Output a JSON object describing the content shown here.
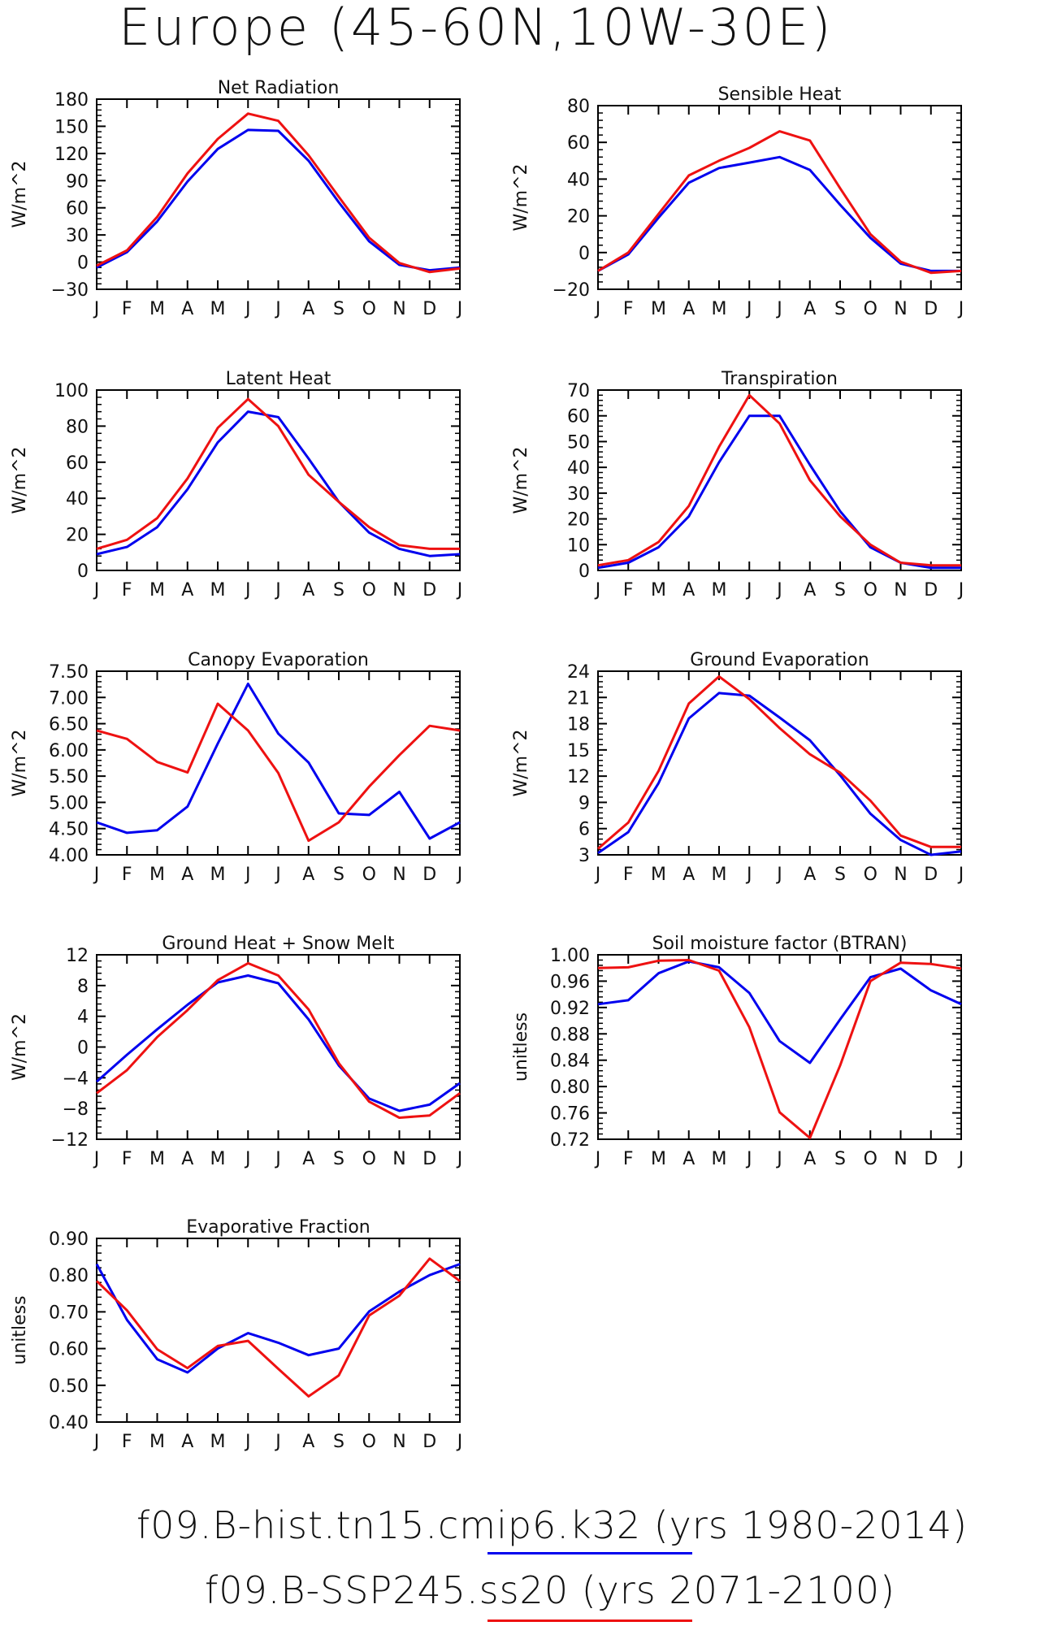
{
  "title": "Europe (45-60N,10W-30E)",
  "legend": [
    {
      "label": "f09.B-hist.tn15.cmip6.k32 (yrs 1980-2014)",
      "color": "#0000ee"
    },
    {
      "label": "f09.B-SSP245.ss20 (yrs 2071-2100)",
      "color": "#ee1111"
    }
  ],
  "chart_data": [
    {
      "type": "line",
      "title": "Net Radiation",
      "ylabel": "W/m^2",
      "categories": [
        "J",
        "F",
        "M",
        "A",
        "M",
        "J",
        "J",
        "A",
        "S",
        "O",
        "N",
        "D",
        "J"
      ],
      "ylim": [
        -30,
        180
      ],
      "yticks": [
        -30,
        0,
        30,
        60,
        90,
        120,
        150,
        180
      ],
      "series": [
        {
          "color": "#0000ee",
          "values": [
            -6,
            11,
            45,
            89,
            125,
            146,
            145,
            112,
            66,
            23,
            -3,
            -9,
            -6
          ]
        },
        {
          "color": "#ee1111",
          "values": [
            -4,
            13,
            50,
            98,
            136,
            164,
            156,
            118,
            72,
            27,
            -1,
            -11,
            -7
          ]
        }
      ]
    },
    {
      "type": "line",
      "title": "Sensible Heat",
      "ylabel": "W/m^2",
      "categories": [
        "J",
        "F",
        "M",
        "A",
        "M",
        "J",
        "J",
        "A",
        "S",
        "O",
        "N",
        "D",
        "J"
      ],
      "ylim": [
        -20,
        80
      ],
      "yticks": [
        -20,
        0,
        20,
        40,
        60,
        80
      ],
      "series": [
        {
          "color": "#0000ee",
          "values": [
            -10,
            -1,
            19,
            38,
            46,
            49,
            52,
            45,
            26,
            8,
            -6,
            -10,
            -10
          ]
        },
        {
          "color": "#ee1111",
          "values": [
            -10,
            0,
            21,
            42,
            50,
            57,
            66,
            61,
            35,
            10,
            -5,
            -11,
            -10
          ]
        }
      ]
    },
    {
      "type": "line",
      "title": "Latent Heat",
      "ylabel": "W/m^2",
      "categories": [
        "J",
        "F",
        "M",
        "A",
        "M",
        "J",
        "J",
        "A",
        "S",
        "O",
        "N",
        "D",
        "J"
      ],
      "ylim": [
        0,
        100
      ],
      "yticks": [
        0,
        20,
        40,
        60,
        80,
        100
      ],
      "series": [
        {
          "color": "#0000ee",
          "values": [
            9,
            13,
            24,
            45,
            71,
            88,
            85,
            62,
            38,
            21,
            12,
            8,
            9
          ]
        },
        {
          "color": "#ee1111",
          "values": [
            12,
            17,
            29,
            51,
            79,
            95,
            80,
            53,
            38,
            24,
            14,
            12,
            12
          ]
        }
      ]
    },
    {
      "type": "line",
      "title": "Transpiration",
      "ylabel": "W/m^2",
      "categories": [
        "J",
        "F",
        "M",
        "A",
        "M",
        "J",
        "J",
        "A",
        "S",
        "O",
        "N",
        "D",
        "J"
      ],
      "ylim": [
        0,
        70
      ],
      "yticks": [
        0,
        10,
        20,
        30,
        40,
        50,
        60,
        70
      ],
      "series": [
        {
          "color": "#0000ee",
          "values": [
            1,
            3,
            9,
            21,
            42,
            60,
            60,
            41,
            23,
            9,
            3,
            1,
            1
          ]
        },
        {
          "color": "#ee1111",
          "values": [
            2,
            4,
            11,
            25,
            48,
            68,
            57,
            35,
            21,
            10,
            3,
            2,
            2
          ]
        }
      ]
    },
    {
      "type": "line",
      "title": "Canopy Evaporation",
      "ylabel": "W/m^2",
      "categories": [
        "J",
        "F",
        "M",
        "A",
        "M",
        "J",
        "J",
        "A",
        "S",
        "O",
        "N",
        "D",
        "J"
      ],
      "ylim": [
        4.0,
        7.5
      ],
      "yticks": [
        4.0,
        4.5,
        5.0,
        5.5,
        6.0,
        6.5,
        7.0,
        7.5
      ],
      "ytick_labels": [
        "4.00",
        "4.50",
        "5.00",
        "5.50",
        "6.00",
        "6.50",
        "7.00",
        "7.50"
      ],
      "series": [
        {
          "color": "#0000ee",
          "values": [
            4.62,
            4.42,
            4.47,
            4.92,
            6.12,
            7.26,
            6.31,
            5.76,
            4.79,
            4.76,
            5.2,
            4.31,
            4.62
          ]
        },
        {
          "color": "#ee1111",
          "values": [
            6.37,
            6.21,
            5.77,
            5.57,
            6.88,
            6.37,
            5.56,
            4.27,
            4.62,
            5.3,
            5.9,
            6.46,
            6.37
          ]
        }
      ]
    },
    {
      "type": "line",
      "title": "Ground Evaporation",
      "ylabel": "W/m^2",
      "categories": [
        "J",
        "F",
        "M",
        "A",
        "M",
        "J",
        "J",
        "A",
        "S",
        "O",
        "N",
        "D",
        "J"
      ],
      "ylim": [
        3,
        24
      ],
      "yticks": [
        3,
        6,
        9,
        12,
        15,
        18,
        21,
        24
      ],
      "series": [
        {
          "color": "#0000ee",
          "values": [
            3.2,
            5.6,
            11.2,
            18.6,
            21.5,
            21.2,
            18.7,
            16.1,
            12.1,
            7.7,
            4.7,
            3.0,
            3.4
          ]
        },
        {
          "color": "#ee1111",
          "values": [
            3.7,
            6.7,
            12.6,
            20.3,
            23.4,
            20.8,
            17.5,
            14.5,
            12.4,
            9.2,
            5.2,
            3.9,
            3.9
          ]
        }
      ]
    },
    {
      "type": "line",
      "title": "Ground Heat + Snow Melt",
      "ylabel": "W/m^2",
      "categories": [
        "J",
        "F",
        "M",
        "A",
        "M",
        "J",
        "J",
        "A",
        "S",
        "O",
        "N",
        "D",
        "J"
      ],
      "ylim": [
        -12,
        12
      ],
      "yticks": [
        -12,
        -8,
        -4,
        0,
        4,
        8,
        12
      ],
      "series": [
        {
          "color": "#0000ee",
          "values": [
            -4.5,
            -1.0,
            2.3,
            5.5,
            8.4,
            9.3,
            8.3,
            3.6,
            -2.4,
            -6.7,
            -8.3,
            -7.5,
            -4.7
          ]
        },
        {
          "color": "#ee1111",
          "values": [
            -6.0,
            -3.0,
            1.3,
            4.8,
            8.7,
            10.9,
            9.3,
            4.9,
            -2.1,
            -7.1,
            -9.2,
            -8.9,
            -6.0
          ]
        }
      ]
    },
    {
      "type": "line",
      "title": "Soil moisture factor (BTRAN)",
      "ylabel": "unitless",
      "categories": [
        "J",
        "F",
        "M",
        "A",
        "M",
        "J",
        "J",
        "A",
        "S",
        "O",
        "N",
        "D",
        "J"
      ],
      "ylim": [
        0.72,
        1.0
      ],
      "yticks": [
        0.72,
        0.76,
        0.8,
        0.84,
        0.88,
        0.92,
        0.96,
        1.0
      ],
      "ytick_labels": [
        "0.72",
        "0.76",
        "0.80",
        "0.84",
        "0.88",
        "0.92",
        "0.96",
        "1.00"
      ],
      "series": [
        {
          "color": "#0000ee",
          "values": [
            0.925,
            0.931,
            0.972,
            0.99,
            0.981,
            0.942,
            0.869,
            0.836,
            0.902,
            0.966,
            0.979,
            0.946,
            0.925
          ]
        },
        {
          "color": "#ee1111",
          "values": [
            0.98,
            0.981,
            0.991,
            0.992,
            0.976,
            0.89,
            0.761,
            0.722,
            0.832,
            0.96,
            0.988,
            0.986,
            0.979
          ]
        }
      ]
    },
    {
      "type": "line",
      "title": "Evaporative Fraction",
      "ylabel": "unitless",
      "categories": [
        "J",
        "F",
        "M",
        "A",
        "M",
        "J",
        "J",
        "A",
        "S",
        "O",
        "N",
        "D",
        "J"
      ],
      "ylim": [
        0.4,
        0.9
      ],
      "yticks": [
        0.4,
        0.5,
        0.6,
        0.7,
        0.8,
        0.9
      ],
      "ytick_labels": [
        "0.40",
        "0.50",
        "0.60",
        "0.70",
        "0.80",
        "0.90"
      ],
      "series": [
        {
          "color": "#0000ee",
          "values": [
            0.83,
            0.678,
            0.571,
            0.535,
            0.6,
            0.642,
            0.616,
            0.582,
            0.6,
            0.701,
            0.755,
            0.8,
            0.83
          ]
        },
        {
          "color": "#ee1111",
          "values": [
            0.784,
            0.704,
            0.598,
            0.547,
            0.607,
            0.621,
            0.545,
            0.47,
            0.527,
            0.69,
            0.744,
            0.845,
            0.784
          ]
        }
      ]
    }
  ]
}
